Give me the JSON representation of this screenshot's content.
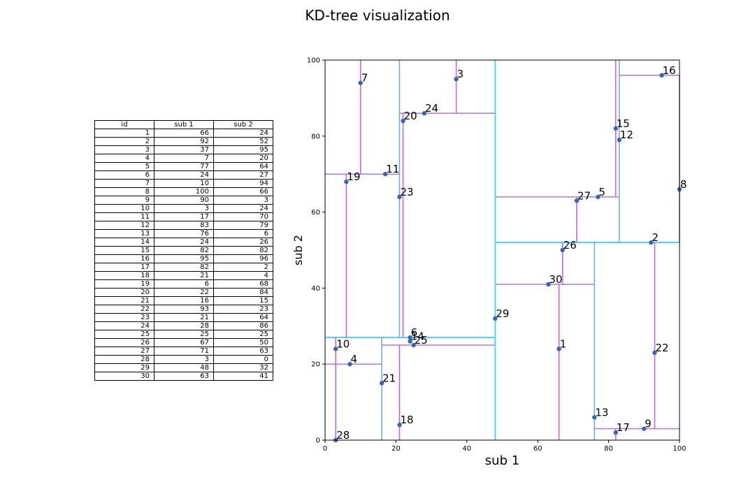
{
  "title": "KD-tree visualization",
  "table": {
    "headers": [
      "id",
      "sub 1",
      "sub 2"
    ]
  },
  "chart_data": {
    "type": "scatter",
    "title": "KD-tree visualization",
    "xlabel": "sub 1",
    "ylabel": "sub 2",
    "xlim": [
      0,
      100
    ],
    "ylim": [
      0,
      100
    ],
    "xticks": [
      0,
      20,
      40,
      60,
      80,
      100
    ],
    "yticks": [
      0,
      20,
      40,
      60,
      80,
      100
    ],
    "points": [
      {
        "id": 1,
        "x": 66,
        "y": 24
      },
      {
        "id": 2,
        "x": 92,
        "y": 52
      },
      {
        "id": 3,
        "x": 37,
        "y": 95
      },
      {
        "id": 4,
        "x": 7,
        "y": 20
      },
      {
        "id": 5,
        "x": 77,
        "y": 64
      },
      {
        "id": 6,
        "x": 24,
        "y": 27
      },
      {
        "id": 7,
        "x": 10,
        "y": 94
      },
      {
        "id": 8,
        "x": 100,
        "y": 66
      },
      {
        "id": 9,
        "x": 90,
        "y": 3
      },
      {
        "id": 10,
        "x": 3,
        "y": 24
      },
      {
        "id": 11,
        "x": 17,
        "y": 70
      },
      {
        "id": 12,
        "x": 83,
        "y": 79
      },
      {
        "id": 13,
        "x": 76,
        "y": 6
      },
      {
        "id": 14,
        "x": 24,
        "y": 26
      },
      {
        "id": 15,
        "x": 82,
        "y": 82
      },
      {
        "id": 16,
        "x": 95,
        "y": 96
      },
      {
        "id": 17,
        "x": 82,
        "y": 2
      },
      {
        "id": 18,
        "x": 21,
        "y": 4
      },
      {
        "id": 19,
        "x": 6,
        "y": 68
      },
      {
        "id": 20,
        "x": 22,
        "y": 84
      },
      {
        "id": 21,
        "x": 16,
        "y": 15
      },
      {
        "id": 22,
        "x": 93,
        "y": 23
      },
      {
        "id": 23,
        "x": 21,
        "y": 64
      },
      {
        "id": 24,
        "x": 28,
        "y": 86
      },
      {
        "id": 25,
        "x": 25,
        "y": 25
      },
      {
        "id": 26,
        "x": 67,
        "y": 50
      },
      {
        "id": 27,
        "x": 71,
        "y": 63
      },
      {
        "id": 28,
        "x": 3,
        "y": 0
      },
      {
        "id": 29,
        "x": 48,
        "y": 32
      },
      {
        "id": 30,
        "x": 63,
        "y": 41
      }
    ],
    "splits": [
      {
        "x1": 48,
        "y1": 0,
        "x2": 48,
        "y2": 100,
        "level": 0
      },
      {
        "x1": 0,
        "y1": 27,
        "x2": 48,
        "y2": 27,
        "level": 1
      },
      {
        "x1": 48,
        "y1": 52,
        "x2": 100,
        "y2": 52,
        "level": 1
      },
      {
        "x1": 16,
        "y1": 0,
        "x2": 16,
        "y2": 27,
        "level": 2
      },
      {
        "x1": 21,
        "y1": 27,
        "x2": 21,
        "y2": 100,
        "level": 2
      },
      {
        "x1": 76,
        "y1": 0,
        "x2": 76,
        "y2": 52,
        "level": 2
      },
      {
        "x1": 83,
        "y1": 52,
        "x2": 83,
        "y2": 100,
        "level": 2
      },
      {
        "x1": 0,
        "y1": 20,
        "x2": 16,
        "y2": 20,
        "level": 3
      },
      {
        "x1": 16,
        "y1": 25,
        "x2": 48,
        "y2": 25,
        "level": 3
      },
      {
        "x1": 0,
        "y1": 70,
        "x2": 21,
        "y2": 70,
        "level": 3
      },
      {
        "x1": 21,
        "y1": 86,
        "x2": 48,
        "y2": 86,
        "level": 3
      },
      {
        "x1": 48,
        "y1": 41,
        "x2": 76,
        "y2": 41,
        "level": 3
      },
      {
        "x1": 76,
        "y1": 3,
        "x2": 100,
        "y2": 3,
        "level": 3
      },
      {
        "x1": 48,
        "y1": 64,
        "x2": 83,
        "y2": 64,
        "level": 3
      },
      {
        "x1": 83,
        "y1": 96,
        "x2": 100,
        "y2": 96,
        "level": 3
      },
      {
        "x1": 3,
        "y1": 0,
        "x2": 3,
        "y2": 20,
        "level": 4
      },
      {
        "x1": 21,
        "y1": 0,
        "x2": 21,
        "y2": 25,
        "level": 4
      },
      {
        "x1": 6,
        "y1": 27,
        "x2": 6,
        "y2": 70,
        "level": 4
      },
      {
        "x1": 10,
        "y1": 70,
        "x2": 10,
        "y2": 100,
        "level": 4
      },
      {
        "x1": 22,
        "y1": 27,
        "x2": 22,
        "y2": 86,
        "level": 4
      },
      {
        "x1": 37,
        "y1": 86,
        "x2": 37,
        "y2": 100,
        "level": 4
      },
      {
        "x1": 66,
        "y1": 0,
        "x2": 66,
        "y2": 41,
        "level": 4
      },
      {
        "x1": 67,
        "y1": 41,
        "x2": 67,
        "y2": 52,
        "level": 4
      },
      {
        "x1": 82,
        "y1": 0,
        "x2": 82,
        "y2": 3,
        "level": 4
      },
      {
        "x1": 93,
        "y1": 3,
        "x2": 93,
        "y2": 52,
        "level": 4
      },
      {
        "x1": 71,
        "y1": 52,
        "x2": 71,
        "y2": 64,
        "level": 4
      },
      {
        "x1": 82,
        "y1": 64,
        "x2": 82,
        "y2": 100,
        "level": 4
      },
      {
        "x1": 100,
        "y1": 52,
        "x2": 100,
        "y2": 96,
        "level": 4
      },
      {
        "x1": 3,
        "y1": 20,
        "x2": 3,
        "y2": 27,
        "level": 4
      }
    ],
    "colors": {
      "level0": "#33ddff",
      "level1": "#33ccff",
      "level2": "#66aaee",
      "level3": "#aa77ee",
      "level4": "#cc55ee",
      "point": "#3366bb"
    }
  }
}
